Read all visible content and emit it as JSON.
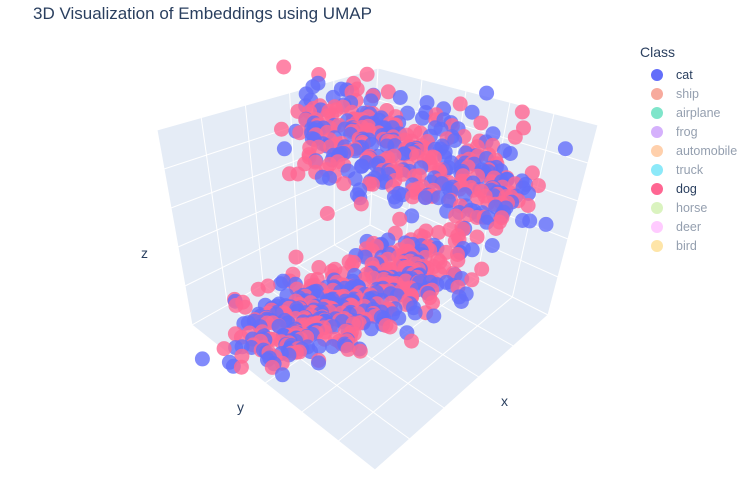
{
  "chart_data": {
    "type": "scatter3d",
    "title": "3D Visualization of Embeddings using UMAP",
    "xlabel": "x",
    "ylabel": "y",
    "zlabel": "z",
    "legend_title": "Class",
    "legend_position": "top-right",
    "grid": true,
    "background_color": "#e5ecf6",
    "series": [
      {
        "name": "cat",
        "color": "#636efa",
        "visible": true
      },
      {
        "name": "ship",
        "color": "#ef553b",
        "visible": false
      },
      {
        "name": "airplane",
        "color": "#00cc96",
        "visible": false
      },
      {
        "name": "frog",
        "color": "#ab63fa",
        "visible": false
      },
      {
        "name": "automobile",
        "color": "#ffa15a",
        "visible": false
      },
      {
        "name": "truck",
        "color": "#19d3f3",
        "visible": false
      },
      {
        "name": "dog",
        "color": "#ff6692",
        "visible": true
      },
      {
        "name": "horse",
        "color": "#b6e880",
        "visible": false
      },
      {
        "name": "deer",
        "color": "#ff97ff",
        "visible": false
      },
      {
        "name": "bird",
        "color": "#fecb52",
        "visible": false
      }
    ]
  }
}
